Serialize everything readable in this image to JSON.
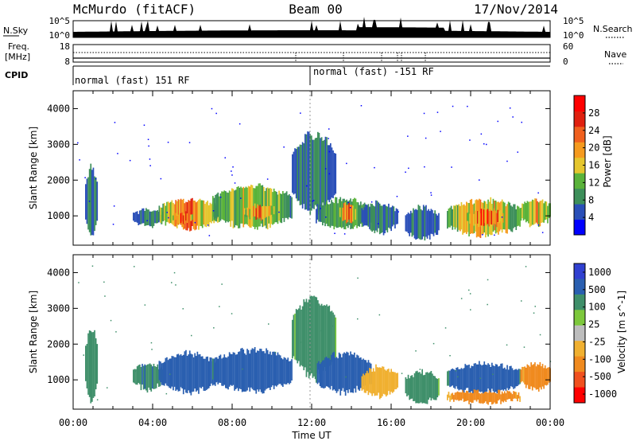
{
  "header": {
    "station": "McMurdo (fitACF)",
    "beam": "Beam 00",
    "date": "17/Nov/2014"
  },
  "noise_panel": {
    "left_label": "N.Sky",
    "right_label": "N.Search",
    "left_ticks": [
      "10^5",
      "10^0"
    ],
    "right_ticks": [
      "10^5",
      "10^0"
    ]
  },
  "freq_panel": {
    "left_label_line1": "Freq.",
    "left_label_line2": "[MHz]",
    "left_ticks": [
      "18",
      "8"
    ],
    "right_label": "Nave",
    "right_ticks": [
      "60",
      "0"
    ]
  },
  "cpid_panel": {
    "label": "CPID",
    "segments": [
      {
        "start_hour": 0,
        "end_hour": 12,
        "text": "normal (fast) 151 RF"
      },
      {
        "start_hour": 12,
        "end_hour": 24,
        "text": "normal (fast) -151 RF"
      }
    ]
  },
  "time_axis": {
    "label": "Time UT",
    "ticks": [
      "00:00",
      "04:00",
      "08:00",
      "12:00",
      "16:00",
      "20:00",
      "00:00"
    ]
  },
  "colors": {
    "power": [
      "#0000ff",
      "#2a4fb8",
      "#3d8f5a",
      "#5ab33a",
      "#e5c62e",
      "#f59a1e",
      "#f0601e",
      "#e0200f",
      "#ff0000"
    ],
    "velocity": [
      "#3040d0",
      "#2a5fb0",
      "#3f8f6a",
      "#7dc83c",
      "#bdbdbd",
      "#f0b030",
      "#f08a1e",
      "#f0501e",
      "#ff0000"
    ]
  },
  "chart_data": [
    {
      "type": "heatmap",
      "title": "Power",
      "xlabel": "",
      "ylabel": "Slant Range [km]",
      "xlim": [
        0,
        24
      ],
      "ylim": [
        180,
        4500
      ],
      "yticks": [
        "1000",
        "2000",
        "3000",
        "4000"
      ],
      "colorbar": {
        "label": "Power [dB]",
        "range": [
          0,
          32
        ],
        "ticks": [
          "4",
          "8",
          "12",
          "16",
          "20",
          "24",
          "28"
        ]
      },
      "echo_regions": [
        {
          "start_hour": 0.6,
          "end_hour": 1.2,
          "range_min_km": 300,
          "range_max_km": 2500,
          "level": 8
        },
        {
          "start_hour": 3.0,
          "end_hour": 4.5,
          "range_min_km": 700,
          "range_max_km": 1200,
          "level": 8
        },
        {
          "start_hour": 4.3,
          "end_hour": 7.3,
          "range_min_km": 600,
          "range_max_km": 1500,
          "level": 24
        },
        {
          "start_hour": 5.0,
          "end_hour": 6.0,
          "range_min_km": 800,
          "range_max_km": 1100,
          "level": 28
        },
        {
          "start_hour": 7.0,
          "end_hour": 11.0,
          "range_min_km": 600,
          "range_max_km": 1900,
          "level": 16
        },
        {
          "start_hour": 8.6,
          "end_hour": 10.2,
          "range_min_km": 900,
          "range_max_km": 1300,
          "level": 24
        },
        {
          "start_hour": 11.0,
          "end_hour": 13.2,
          "range_min_km": 1000,
          "range_max_km": 3400,
          "level": 8
        },
        {
          "start_hour": 12.2,
          "end_hour": 15.0,
          "range_min_km": 600,
          "range_max_km": 1500,
          "level": 12
        },
        {
          "start_hour": 13.4,
          "end_hour": 14.2,
          "range_min_km": 800,
          "range_max_km": 1400,
          "level": 24
        },
        {
          "start_hour": 14.5,
          "end_hour": 16.3,
          "range_min_km": 500,
          "range_max_km": 1400,
          "level": 8
        },
        {
          "start_hour": 16.7,
          "end_hour": 18.4,
          "range_min_km": 300,
          "range_max_km": 1300,
          "level": 8
        },
        {
          "start_hour": 18.8,
          "end_hour": 22.5,
          "range_min_km": 400,
          "range_max_km": 1500,
          "level": 20
        },
        {
          "start_hour": 19.8,
          "end_hour": 21.7,
          "range_min_km": 700,
          "range_max_km": 1200,
          "level": 28
        },
        {
          "start_hour": 22.5,
          "end_hour": 24.0,
          "range_min_km": 700,
          "range_max_km": 1500,
          "level": 20
        }
      ]
    },
    {
      "type": "heatmap",
      "title": "Velocity",
      "xlabel": "Time UT",
      "ylabel": "Slant Range [km]",
      "xlim": [
        0,
        24
      ],
      "ylim": [
        180,
        4500
      ],
      "yticks": [
        "1000",
        "2000",
        "3000",
        "4000"
      ],
      "colorbar": {
        "label": "Velocity [m s^-1]",
        "ticks": [
          "1000",
          "500",
          "100",
          "25",
          "-25",
          "-100",
          "-500",
          "-1000"
        ]
      },
      "echo_regions": [
        {
          "start_hour": 0.6,
          "end_hour": 1.2,
          "range_min_km": 300,
          "range_max_km": 2500,
          "velocity": 100
        },
        {
          "start_hour": 3.0,
          "end_hour": 4.5,
          "range_min_km": 700,
          "range_max_km": 1500,
          "velocity": 100
        },
        {
          "start_hour": 4.3,
          "end_hour": 7.3,
          "range_min_km": 600,
          "range_max_km": 1800,
          "velocity": 250
        },
        {
          "start_hour": 7.0,
          "end_hour": 11.0,
          "range_min_km": 600,
          "range_max_km": 1900,
          "velocity": 250
        },
        {
          "start_hour": 11.0,
          "end_hour": 13.2,
          "range_min_km": 1000,
          "range_max_km": 3400,
          "velocity": 60
        },
        {
          "start_hour": 12.2,
          "end_hour": 15.0,
          "range_min_km": 600,
          "range_max_km": 1800,
          "velocity": 250
        },
        {
          "start_hour": 14.5,
          "end_hour": 16.3,
          "range_min_km": 500,
          "range_max_km": 1400,
          "velocity": -60
        },
        {
          "start_hour": 16.7,
          "end_hour": 18.4,
          "range_min_km": 300,
          "range_max_km": 1300,
          "velocity": 60
        },
        {
          "start_hour": 18.8,
          "end_hour": 22.5,
          "range_min_km": 600,
          "range_max_km": 1500,
          "velocity": 250
        },
        {
          "start_hour": 18.8,
          "end_hour": 22.5,
          "range_min_km": 350,
          "range_max_km": 700,
          "velocity": -200
        },
        {
          "start_hour": 22.5,
          "end_hour": 24.0,
          "range_min_km": 700,
          "range_max_km": 1500,
          "velocity": -200
        }
      ]
    }
  ]
}
